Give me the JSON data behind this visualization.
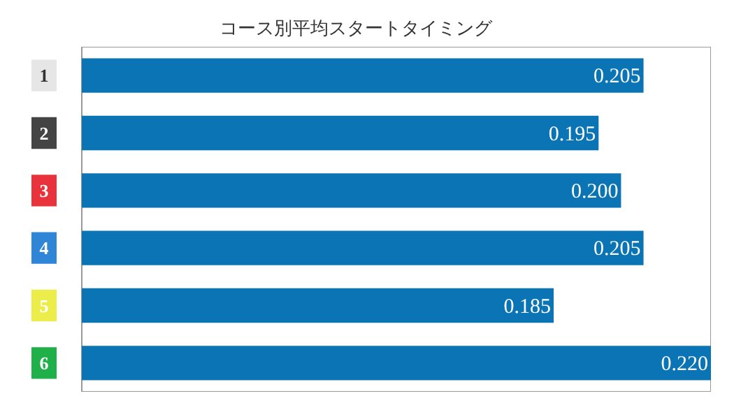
{
  "chart_data": {
    "type": "bar",
    "orientation": "horizontal",
    "title": "コース別平均スタートタイミング",
    "categories": [
      "1",
      "2",
      "3",
      "4",
      "5",
      "6"
    ],
    "values": [
      0.205,
      0.195,
      0.2,
      0.205,
      0.185,
      0.22
    ],
    "value_labels": [
      "0.205",
      "0.195",
      "0.200",
      "0.205",
      "0.185",
      "0.220"
    ],
    "color": "#0a74b5",
    "xlim": [
      0.08,
      0.22
    ],
    "grid": false,
    "legend": false
  }
}
